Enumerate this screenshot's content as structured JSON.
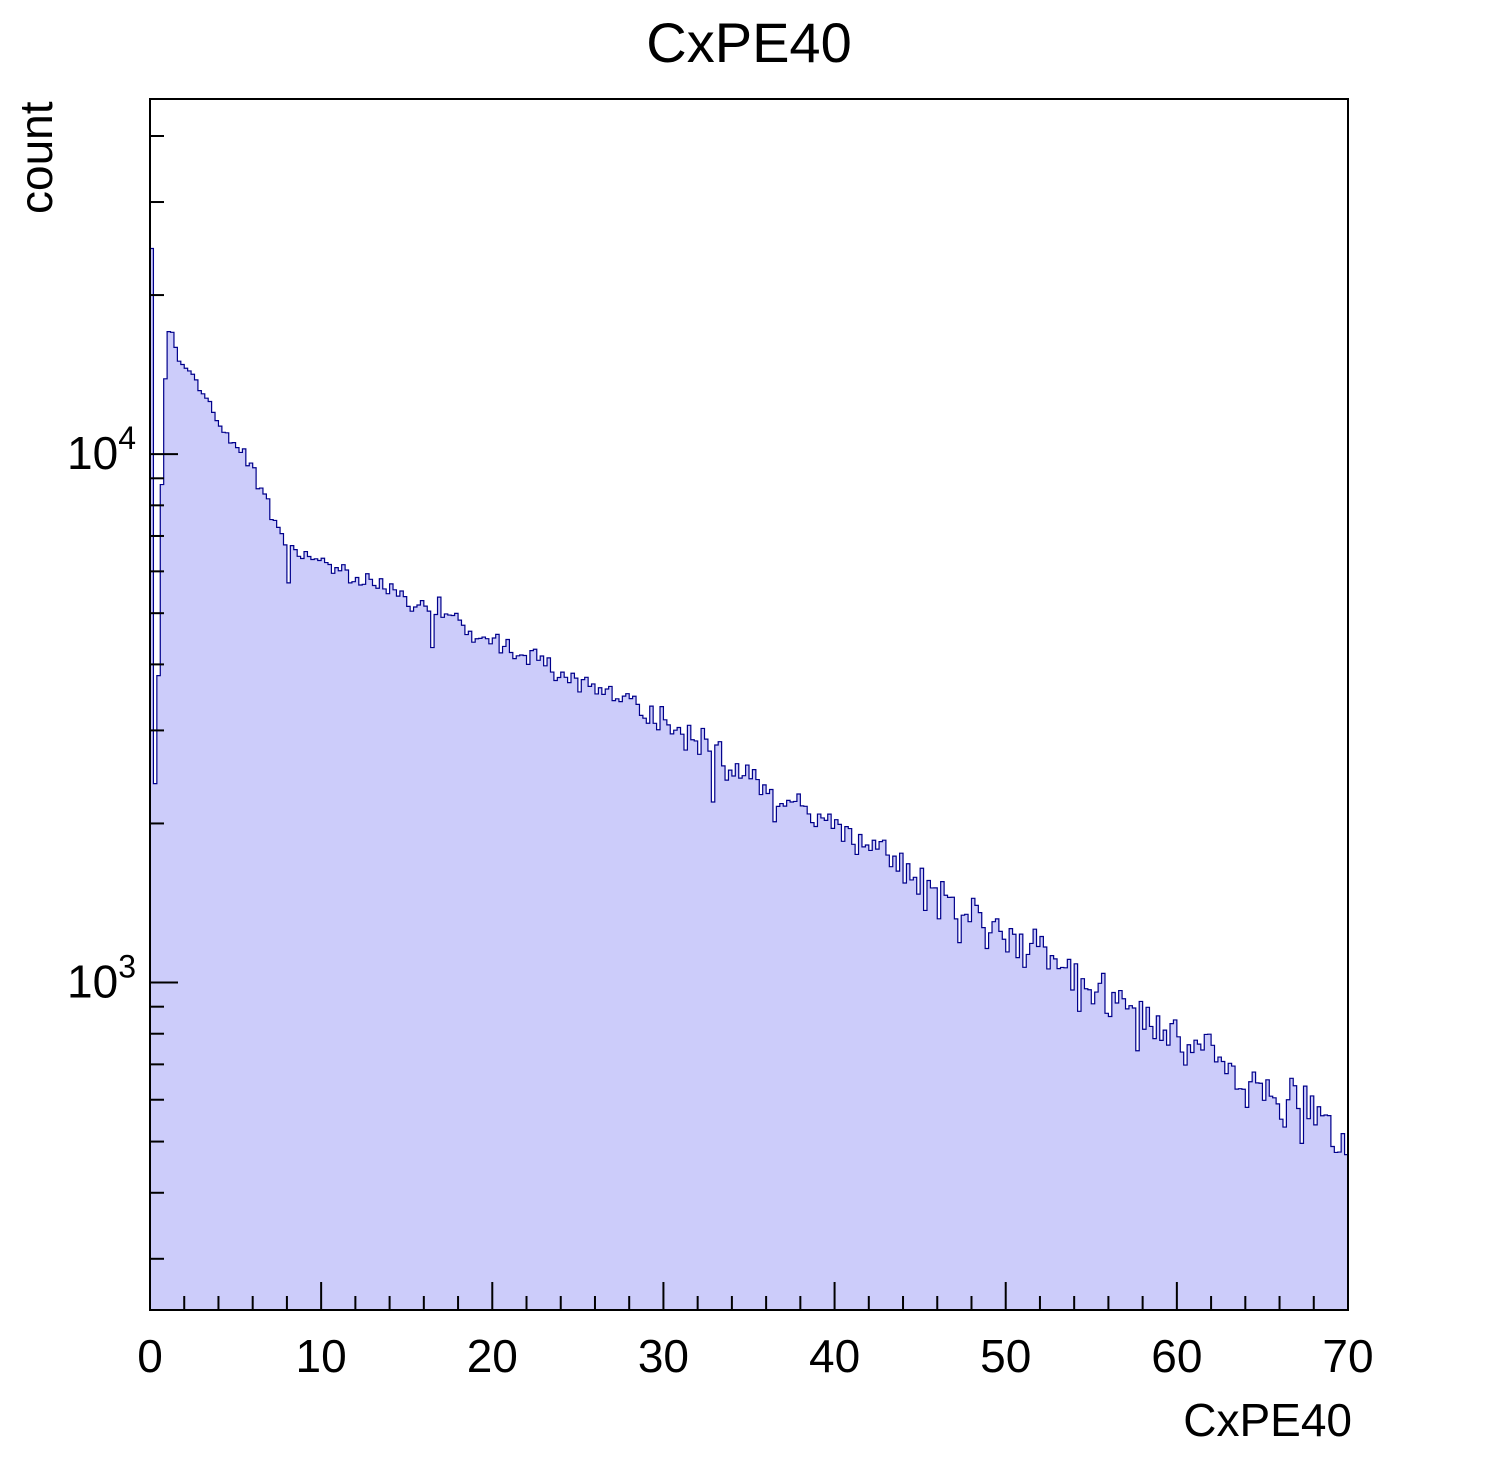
{
  "page": {
    "background": "#ffffff"
  },
  "chart_data": {
    "type": "area",
    "subtype": "step-histogram-log-y",
    "title": "CxPE40",
    "xlabel": "CxPE40",
    "ylabel": "count",
    "x_range": [
      0,
      70
    ],
    "y_scale": "log",
    "y_range": [
      240,
      47000
    ],
    "bin_width": 0.2,
    "grid": false,
    "legend": "none",
    "x_major_ticks": [
      0,
      10,
      20,
      30,
      40,
      50,
      60,
      70
    ],
    "x_tick_labels": [
      "0",
      "10",
      "20",
      "30",
      "40",
      "50",
      "60",
      "70"
    ],
    "x_minor_step": 2,
    "y_labeled_ticks": [
      {
        "value": 1000,
        "base": "10",
        "exp": "3"
      },
      {
        "value": 10000,
        "base": "10",
        "exp": "4"
      }
    ],
    "y_minor_ticks": [
      300,
      400,
      500,
      600,
      700,
      800,
      900,
      2000,
      3000,
      4000,
      5000,
      6000,
      7000,
      8000,
      9000,
      20000,
      30000,
      40000
    ],
    "anchors": [
      [
        0.1,
        24500
      ],
      [
        0.3,
        2400
      ],
      [
        0.5,
        5200
      ],
      [
        0.7,
        8800
      ],
      [
        0.9,
        13500
      ],
      [
        1.1,
        16800
      ],
      [
        1.3,
        17000
      ],
      [
        1.5,
        15800
      ],
      [
        1.8,
        15000
      ],
      [
        2.2,
        14400
      ],
      [
        2.6,
        13800
      ],
      [
        3.0,
        13100
      ],
      [
        3.5,
        12300
      ],
      [
        4.0,
        11500
      ],
      [
        4.5,
        10800
      ],
      [
        5.0,
        10400
      ],
      [
        5.5,
        10100
      ],
      [
        6.0,
        9400
      ],
      [
        6.5,
        8600
      ],
      [
        7.0,
        7900
      ],
      [
        7.5,
        7300
      ],
      [
        8.0,
        6600
      ],
      [
        8.5,
        6500
      ],
      [
        9.0,
        6400
      ],
      [
        9.5,
        6350
      ],
      [
        10,
        6300
      ],
      [
        11,
        6050
      ],
      [
        12,
        5850
      ],
      [
        13,
        5700
      ],
      [
        14,
        5500
      ],
      [
        15,
        5350
      ],
      [
        16,
        5150
      ],
      [
        17,
        4980
      ],
      [
        18,
        4820
      ],
      [
        19,
        4660
      ],
      [
        20,
        4500
      ],
      [
        21,
        4350
      ],
      [
        22,
        4200
      ],
      [
        23,
        4060
      ],
      [
        24,
        3920
      ],
      [
        25,
        3780
      ],
      [
        26,
        3640
      ],
      [
        27,
        3500
      ],
      [
        28,
        3360
      ],
      [
        29,
        3200
      ],
      [
        30,
        3060
      ],
      [
        31,
        2940
      ],
      [
        32,
        2830
      ],
      [
        33,
        2700
      ],
      [
        34,
        2570
      ],
      [
        35,
        2450
      ],
      [
        36,
        2350
      ],
      [
        37,
        2250
      ],
      [
        38,
        2150
      ],
      [
        39,
        2050
      ],
      [
        40,
        1960
      ],
      [
        41,
        1870
      ],
      [
        42,
        1790
      ],
      [
        43,
        1700
      ],
      [
        44,
        1630
      ],
      [
        45,
        1550
      ],
      [
        46,
        1480
      ],
      [
        47,
        1410
      ],
      [
        48,
        1350
      ],
      [
        49,
        1290
      ],
      [
        50,
        1230
      ],
      [
        51,
        1170
      ],
      [
        52,
        1120
      ],
      [
        53,
        1070
      ],
      [
        54,
        1020
      ],
      [
        55,
        975
      ],
      [
        56,
        930
      ],
      [
        57,
        890
      ],
      [
        58,
        850
      ],
      [
        59,
        815
      ],
      [
        60,
        780
      ],
      [
        61,
        745
      ],
      [
        62,
        715
      ],
      [
        63,
        685
      ],
      [
        64,
        655
      ],
      [
        65,
        625
      ],
      [
        66,
        600
      ],
      [
        67,
        575
      ],
      [
        68,
        550
      ],
      [
        69,
        528
      ],
      [
        70,
        505
      ]
    ],
    "spikes": [
      [
        0.5,
        0.75
      ],
      [
        8.1,
        0.85
      ],
      [
        16.5,
        0.85
      ],
      [
        16.9,
        1.08
      ],
      [
        32.3,
        1.1
      ],
      [
        32.9,
        0.82
      ],
      [
        33.3,
        1.07
      ],
      [
        34.1,
        0.9
      ],
      [
        36.5,
        0.92
      ],
      [
        47.3,
        0.92
      ],
      [
        54.9,
        1.06
      ],
      [
        57.7,
        0.9
      ],
      [
        63.1,
        1.08
      ],
      [
        66.3,
        0.88
      ],
      [
        67.5,
        1.07
      ]
    ],
    "colors": {
      "fill": "#ccccfa",
      "line": "#00008b",
      "frame": "#000000",
      "text": "#000000"
    }
  }
}
